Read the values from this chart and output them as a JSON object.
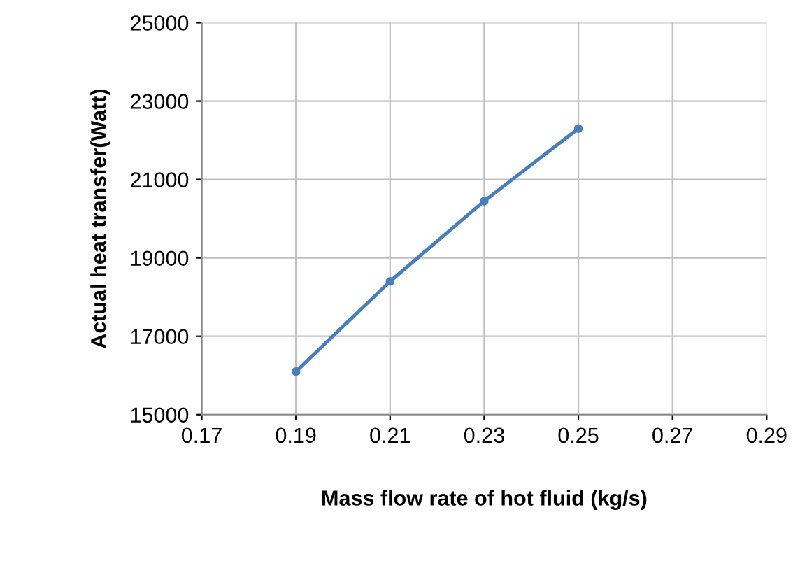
{
  "chart_data": {
    "type": "line",
    "xlabel": "Mass flow rate of hot fluid (kg/s)",
    "ylabel": "Actual heat transfer(Watt)",
    "x": [
      0.19,
      0.21,
      0.23,
      0.25
    ],
    "series": [
      {
        "color": "#4a7ebb",
        "values": [
          16100,
          18400,
          20450,
          22300
        ]
      }
    ],
    "xlim": [
      0.17,
      0.29
    ],
    "xticks": [
      0.17,
      0.19,
      0.21,
      0.23,
      0.25,
      0.27,
      0.29
    ],
    "ylim": [
      15000,
      25000
    ],
    "yticks": [
      15000,
      17000,
      19000,
      21000,
      23000,
      25000
    ],
    "grid": true,
    "marker": "circle",
    "line_style": "solid"
  }
}
